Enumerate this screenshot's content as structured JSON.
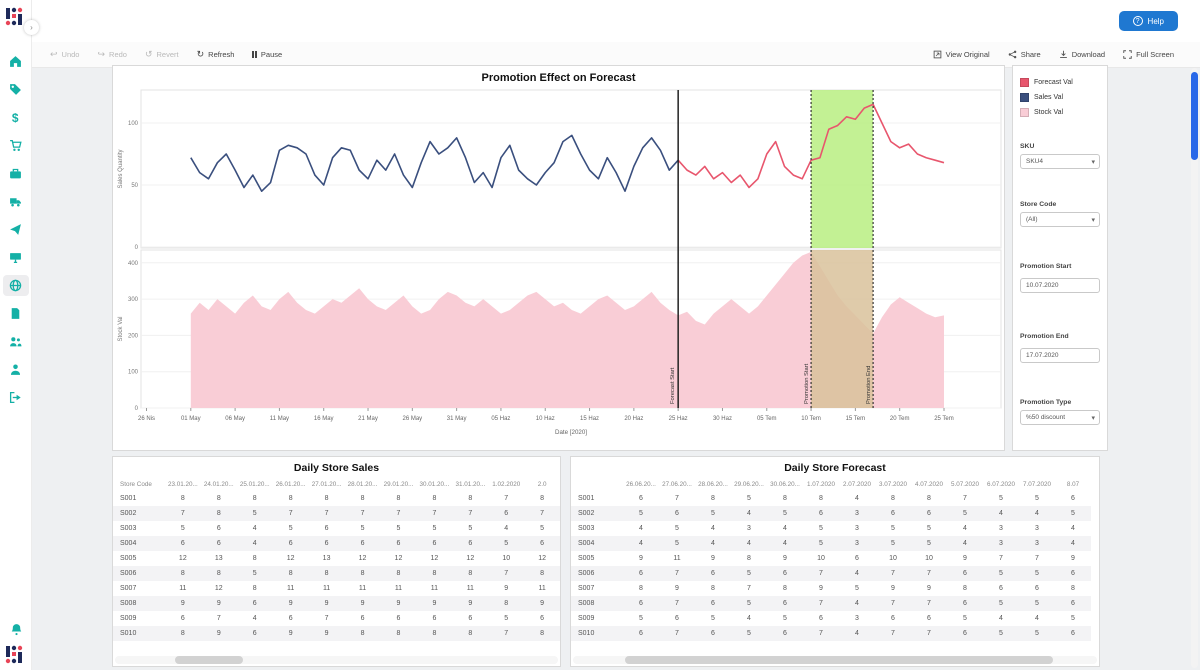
{
  "app": {
    "help_label": "Help"
  },
  "toolbar": {
    "undo": "Undo",
    "redo": "Redo",
    "revert": "Revert",
    "refresh": "Refresh",
    "pause": "Pause",
    "view_original": "View Original",
    "share": "Share",
    "download": "Download",
    "full_screen": "Full Screen"
  },
  "panel": {
    "legend": [
      {
        "label": "Forecast Val",
        "color": "#e8566d"
      },
      {
        "label": "Sales Val",
        "color": "#3a4f7e"
      },
      {
        "label": "Stock Val",
        "color": "#f9cdd6"
      }
    ],
    "sku_label": "SKU",
    "sku_value": "SKU4",
    "store_code_label": "Store Code",
    "store_code_value": "(All)",
    "promo_start_label": "Promotion Start",
    "promo_start_value": "10.07.2020",
    "promo_end_label": "Promotion End",
    "promo_end_value": "17.07.2020",
    "promo_type_label": "Promotion Type",
    "promo_type_value": "%50 discount"
  },
  "chart_data": {
    "type": "line",
    "title": "Promotion Effect on Forecast",
    "xlabel": "Date [2020]",
    "x_tick_labels": [
      "26 Nis",
      "01 May",
      "06 May",
      "11 May",
      "16 May",
      "21 May",
      "26 May",
      "31 May",
      "05 Haz",
      "10 Haz",
      "15 Haz",
      "20 Haz",
      "25 Haz",
      "30 Haz",
      "05 Tem",
      "10 Tem",
      "15 Tem",
      "20 Tem",
      "25 Tem"
    ],
    "x_tick_day_interval": 5,
    "total_days": 90,
    "top_plot": {
      "ylabel": "Sales Quantity",
      "yticks": [
        0,
        50,
        100
      ],
      "series": [
        {
          "name": "Sales Val",
          "color": "#3a4f7e",
          "start_day": 5,
          "values": [
            72,
            60,
            55,
            68,
            75,
            62,
            48,
            58,
            45,
            52,
            78,
            82,
            80,
            75,
            58,
            50,
            72,
            80,
            78,
            62,
            55,
            70,
            62,
            75,
            58,
            48,
            68,
            85,
            75,
            80,
            88,
            72,
            52,
            60,
            48,
            72,
            82,
            62,
            55,
            50,
            60,
            68,
            85,
            90,
            75,
            62,
            55,
            72,
            60,
            45,
            65,
            80,
            88,
            78,
            62,
            70
          ]
        },
        {
          "name": "Forecast Val",
          "color": "#e8566d",
          "start_day": 60,
          "values": [
            70,
            62,
            58,
            65,
            55,
            60,
            52,
            58,
            48,
            55,
            75,
            85,
            65,
            58,
            55,
            70,
            72,
            95,
            98,
            105,
            103,
            112,
            115,
            100,
            85,
            80,
            83,
            75,
            72,
            70,
            68
          ]
        }
      ]
    },
    "bottom_plot": {
      "ylabel": "Stock Val",
      "yticks": [
        0,
        100,
        200,
        300,
        400
      ],
      "series": [
        {
          "name": "Stock Val",
          "color": "#f9cdd6",
          "kind": "area",
          "start_day": 5,
          "values": [
            260,
            290,
            270,
            300,
            280,
            260,
            290,
            310,
            280,
            270,
            300,
            320,
            290,
            270,
            260,
            280,
            300,
            290,
            310,
            330,
            300,
            280,
            270,
            290,
            310,
            280,
            260,
            270,
            300,
            320,
            310,
            290,
            280,
            300,
            280,
            260,
            270,
            290,
            310,
            320,
            300,
            280,
            290,
            270,
            260,
            280,
            300,
            310,
            290,
            270,
            280,
            300,
            320,
            290,
            270,
            255,
            265,
            240,
            230,
            260,
            280,
            300,
            280,
            260,
            280,
            310,
            340,
            370,
            400,
            420,
            430,
            390,
            350,
            310,
            280,
            255,
            230,
            205,
            250,
            285,
            305,
            290,
            275,
            260,
            250,
            255
          ]
        }
      ]
    },
    "annotations": {
      "forecast_start": {
        "label": "Forecast Start",
        "day": 60
      },
      "promotion": {
        "start_label": "Promotion Start",
        "end_label": "Promotion End",
        "start_day": 75,
        "end_day": 82,
        "top_fill": "#b9ee81",
        "bottom_fill": "#d9c29b"
      }
    }
  },
  "sales_table": {
    "title": "Daily Store Sales",
    "first_col_header": "Store Code",
    "date_columns": [
      "23.01.20...",
      "24.01.20...",
      "25.01.20...",
      "26.01.20...",
      "27.01.20...",
      "28.01.20...",
      "29.01.20...",
      "30.01.20...",
      "31.01.20...",
      "1.02.2020",
      "2.0"
    ],
    "rows": [
      {
        "store": "S001",
        "values": [
          8,
          8,
          8,
          8,
          8,
          8,
          8,
          8,
          8,
          7,
          8
        ]
      },
      {
        "store": "S002",
        "values": [
          7,
          8,
          5,
          7,
          7,
          7,
          7,
          7,
          7,
          6,
          7
        ]
      },
      {
        "store": "S003",
        "values": [
          5,
          6,
          4,
          5,
          6,
          5,
          5,
          5,
          5,
          4,
          5
        ]
      },
      {
        "store": "S004",
        "values": [
          6,
          6,
          4,
          6,
          6,
          6,
          6,
          6,
          6,
          5,
          6
        ]
      },
      {
        "store": "S005",
        "values": [
          12,
          13,
          8,
          12,
          13,
          12,
          12,
          12,
          12,
          10,
          12
        ]
      },
      {
        "store": "S006",
        "values": [
          8,
          8,
          5,
          8,
          8,
          8,
          8,
          8,
          8,
          7,
          8
        ]
      },
      {
        "store": "S007",
        "values": [
          11,
          12,
          8,
          11,
          11,
          11,
          11,
          11,
          11,
          9,
          11
        ]
      },
      {
        "store": "S008",
        "values": [
          9,
          9,
          6,
          9,
          9,
          9,
          9,
          9,
          9,
          8,
          9
        ]
      },
      {
        "store": "S009",
        "values": [
          6,
          7,
          4,
          6,
          7,
          6,
          6,
          6,
          6,
          5,
          6
        ]
      },
      {
        "store": "S010",
        "values": [
          8,
          9,
          6,
          9,
          9,
          8,
          8,
          8,
          8,
          7,
          8
        ]
      }
    ]
  },
  "forecast_table": {
    "title": "Daily Store Forecast",
    "first_col_header": "",
    "date_columns": [
      "26.06.20...",
      "27.06.20...",
      "28.06.20...",
      "29.06.20...",
      "30.06.20...",
      "1.07.2020",
      "2.07.2020",
      "3.07.2020",
      "4.07.2020",
      "5.07.2020",
      "6.07.2020",
      "7.07.2020",
      "8.07"
    ],
    "rows": [
      {
        "store": "S001",
        "values": [
          6,
          7,
          8,
          5,
          8,
          8,
          4,
          8,
          8,
          7,
          5,
          5,
          6
        ]
      },
      {
        "store": "S002",
        "values": [
          5,
          6,
          5,
          4,
          5,
          6,
          3,
          6,
          6,
          5,
          4,
          4,
          5
        ]
      },
      {
        "store": "S003",
        "values": [
          4,
          5,
          4,
          3,
          4,
          5,
          3,
          5,
          5,
          4,
          3,
          3,
          4
        ]
      },
      {
        "store": "S004",
        "values": [
          4,
          5,
          4,
          4,
          4,
          5,
          3,
          5,
          5,
          4,
          3,
          3,
          4
        ]
      },
      {
        "store": "S005",
        "values": [
          9,
          11,
          9,
          8,
          9,
          10,
          6,
          10,
          10,
          9,
          7,
          7,
          9
        ]
      },
      {
        "store": "S006",
        "values": [
          6,
          7,
          6,
          5,
          6,
          7,
          4,
          7,
          7,
          6,
          5,
          5,
          6
        ]
      },
      {
        "store": "S007",
        "values": [
          8,
          9,
          8,
          7,
          8,
          9,
          5,
          9,
          9,
          8,
          6,
          6,
          8
        ]
      },
      {
        "store": "S008",
        "values": [
          6,
          7,
          6,
          5,
          6,
          7,
          4,
          7,
          7,
          6,
          5,
          5,
          6
        ]
      },
      {
        "store": "S009",
        "values": [
          5,
          6,
          5,
          4,
          5,
          6,
          3,
          6,
          6,
          5,
          4,
          4,
          5
        ]
      },
      {
        "store": "S010",
        "values": [
          6,
          7,
          6,
          5,
          6,
          7,
          4,
          7,
          7,
          6,
          5,
          5,
          6
        ]
      }
    ]
  }
}
